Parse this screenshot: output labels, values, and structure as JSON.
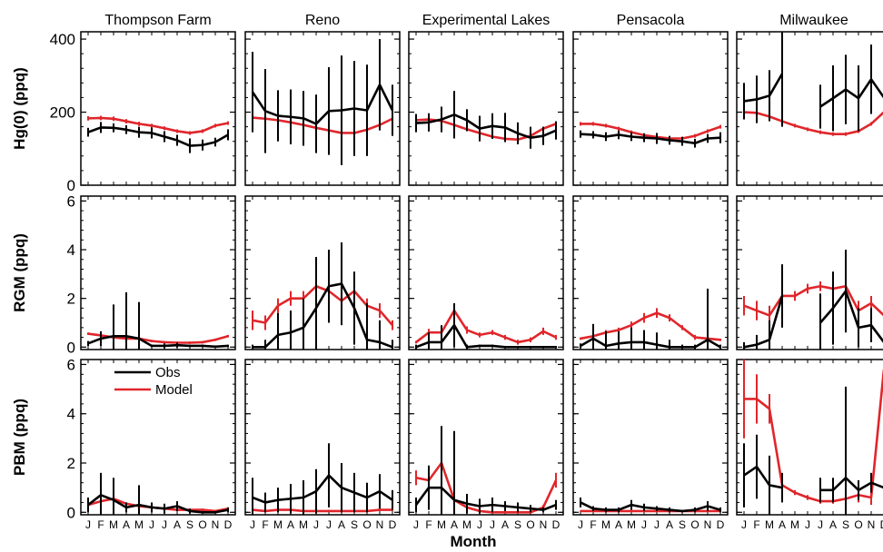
{
  "chart_data": {
    "type": "line",
    "xlabel": "Month",
    "month_labels": [
      "J",
      "F",
      "M",
      "A",
      "M",
      "J",
      "J",
      "A",
      "S",
      "O",
      "N",
      "D"
    ],
    "legend": {
      "placement": "upper-left of bottom-left panel",
      "entries": [
        {
          "name": "Obs",
          "color": "#000000"
        },
        {
          "name": "Model",
          "color": "#e0262b"
        }
      ]
    },
    "colors": {
      "obs": "#000000",
      "model": "#e0262b"
    },
    "sites": [
      "Thompson Farm",
      "Reno",
      "Experimental Lakes",
      "Pensacola",
      "Milwaukee"
    ],
    "rows": [
      {
        "ylabel": "Hg(0) (ppq)",
        "ylim": [
          0,
          420
        ],
        "ticks": [
          0,
          200,
          400
        ],
        "panels": [
          {
            "site": "Thompson Farm",
            "obs": [
              145,
              158,
              157,
              152,
              145,
              143,
              133,
              123,
              108,
              110,
              118,
              138
            ],
            "obs_err": [
              12,
              15,
              12,
              12,
              15,
              15,
              15,
              15,
              20,
              15,
              12,
              15
            ],
            "model": [
              183,
              184,
              182,
              175,
              168,
              163,
              156,
              148,
              143,
              148,
              163,
              170
            ],
            "model_err": [
              6,
              6,
              6,
              6,
              6,
              5,
              5,
              5,
              5,
              5,
              5,
              5
            ]
          },
          {
            "site": "Reno",
            "obs": [
              255,
              203,
              190,
              187,
              183,
              168,
              203,
              205,
              210,
              205,
              275,
              205
            ],
            "obs_err": [
              110,
              115,
              70,
              75,
              75,
              80,
              120,
              150,
              130,
              125,
              125,
              70
            ],
            "model": [
              185,
              182,
              178,
              172,
              165,
              157,
              150,
              143,
              143,
              152,
              165,
              182
            ],
            "model_err": [
              5,
              5,
              5,
              5,
              5,
              5,
              5,
              5,
              5,
              5,
              5,
              5
            ]
          },
          {
            "site": "Experimental Lakes",
            "obs": [
              170,
              172,
              180,
              193,
              178,
              155,
              162,
              158,
              142,
              130,
              135,
              150
            ],
            "obs_err": [
              25,
              25,
              35,
              65,
              30,
              35,
              35,
              40,
              30,
              30,
              25,
              25
            ],
            "model": [
              178,
              180,
              176,
              165,
              153,
              143,
              133,
              127,
              125,
              135,
              155,
              168
            ],
            "model_err": [
              5,
              5,
              5,
              5,
              5,
              5,
              5,
              5,
              5,
              5,
              5,
              5
            ]
          },
          {
            "site": "Pensacola",
            "obs": [
              140,
              138,
              133,
              138,
              133,
              130,
              128,
              123,
              120,
              115,
              128,
              130
            ],
            "obs_err": [
              10,
              10,
              12,
              12,
              12,
              12,
              15,
              12,
              12,
              12,
              12,
              15
            ],
            "model": [
              168,
              168,
              163,
              155,
              145,
              137,
              132,
              128,
              128,
              135,
              148,
              160
            ],
            "model_err": [
              5,
              5,
              5,
              5,
              5,
              5,
              5,
              5,
              5,
              5,
              5,
              5
            ]
          },
          {
            "site": "Milwaukee",
            "obs": [
              230,
              235,
              245,
              305,
              null,
              null,
              215,
              238,
              262,
              238,
              290,
              240
            ],
            "obs_err": [
              50,
              65,
              70,
              145,
              null,
              null,
              60,
              90,
              95,
              90,
              95,
              70
            ],
            "model": [
              200,
              198,
              188,
              175,
              163,
              153,
              145,
              140,
              140,
              148,
              168,
              200
            ],
            "model_err": [
              8,
              6,
              5,
              5,
              5,
              5,
              5,
              5,
              5,
              5,
              5,
              5
            ]
          }
        ]
      },
      {
        "ylabel": "RGM (ppq)",
        "ylim": [
          -0.1,
          6.2
        ],
        "ticks": [
          0,
          2,
          4,
          6
        ],
        "panels": [
          {
            "site": "Thompson Farm",
            "obs": [
              0.15,
              0.35,
              0.45,
              0.45,
              0.35,
              0.05,
              0.05,
              0.08,
              0.05,
              0.05,
              0.02,
              0.05
            ],
            "obs_err": [
              0.1,
              0.3,
              1.3,
              1.8,
              1.5,
              0.05,
              0.1,
              0.1,
              0.05,
              0.05,
              0.05,
              0.05
            ],
            "model": [
              0.55,
              0.48,
              0.4,
              0.35,
              0.35,
              0.25,
              0.2,
              0.18,
              0.18,
              0.2,
              0.3,
              0.45
            ],
            "model_err": [
              0.05,
              0.05,
              0.05,
              0.05,
              0.05,
              0.05,
              0.05,
              0.05,
              0.05,
              0.05,
              0.05,
              0.05
            ]
          },
          {
            "site": "Reno",
            "obs": [
              0.0,
              0.0,
              0.5,
              0.6,
              0.8,
              1.6,
              2.5,
              2.6,
              1.6,
              0.3,
              0.2,
              0.0
            ],
            "obs_err": [
              0.1,
              0.3,
              0.9,
              0.9,
              1.2,
              2.1,
              1.5,
              1.7,
              1.5,
              1.5,
              0.9,
              0.3
            ],
            "model": [
              1.1,
              1.0,
              1.7,
              2.0,
              2.0,
              2.5,
              2.3,
              1.9,
              2.3,
              1.7,
              1.5,
              0.9
            ],
            "model_err": [
              0.4,
              0.3,
              0.3,
              0.3,
              0.3,
              0.4,
              0.3,
              0.3,
              0.3,
              0.3,
              0.3,
              0.2
            ]
          },
          {
            "site": "Experimental Lakes",
            "obs": [
              0.0,
              0.2,
              0.2,
              0.9,
              0.0,
              0.05,
              0.05,
              0.0,
              0.0,
              0.0,
              0.0,
              0.0
            ],
            "obs_err": [
              0.1,
              0.4,
              0.7,
              0.9,
              0.1,
              0.05,
              0.05,
              0.05,
              0.05,
              0.05,
              0.05,
              0.05
            ],
            "model": [
              0.2,
              0.6,
              0.6,
              1.5,
              0.7,
              0.5,
              0.6,
              0.4,
              0.2,
              0.3,
              0.65,
              0.4
            ],
            "model_err": [
              0.05,
              0.15,
              0.15,
              0.3,
              0.15,
              0.1,
              0.1,
              0.1,
              0.1,
              0.1,
              0.15,
              0.1
            ]
          },
          {
            "site": "Pensacola",
            "obs": [
              0.05,
              0.35,
              0.05,
              0.15,
              0.2,
              0.2,
              0.1,
              0.0,
              0.0,
              0.0,
              0.3,
              0.0
            ],
            "obs_err": [
              0.1,
              0.6,
              0.6,
              0.5,
              0.6,
              0.5,
              0.5,
              0.3,
              0.1,
              0.1,
              2.1,
              0.1
            ],
            "model": [
              0.35,
              0.45,
              0.6,
              0.7,
              0.9,
              1.2,
              1.4,
              1.2,
              0.8,
              0.4,
              0.35,
              0.3
            ],
            "model_err": [
              0.05,
              0.1,
              0.1,
              0.1,
              0.15,
              0.2,
              0.2,
              0.15,
              0.1,
              0.1,
              0.05,
              0.05
            ]
          },
          {
            "site": "Milwaukee",
            "obs": [
              0.0,
              0.1,
              0.3,
              2.1,
              null,
              null,
              1.0,
              1.6,
              2.3,
              0.8,
              0.9,
              0.2
            ],
            "obs_err": [
              0.2,
              0.4,
              0.8,
              1.3,
              null,
              null,
              1.2,
              1.5,
              1.7,
              0.8,
              0.7,
              0.2
            ],
            "model": [
              1.7,
              1.5,
              1.3,
              2.1,
              2.1,
              2.4,
              2.5,
              2.4,
              2.5,
              1.5,
              1.8,
              1.3
            ],
            "model_err": [
              0.4,
              0.4,
              0.4,
              0.2,
              0.2,
              0.2,
              0.2,
              0.2,
              0.5,
              0.4,
              0.3,
              0.3
            ]
          }
        ]
      },
      {
        "ylabel": "PBM (ppq)",
        "ylim": [
          -0.1,
          6.2
        ],
        "ticks": [
          0,
          2,
          4,
          6
        ],
        "panels": [
          {
            "site": "Thompson Farm",
            "obs": [
              0.3,
              0.7,
              0.5,
              0.2,
              0.3,
              0.2,
              0.15,
              0.25,
              0.05,
              0.0,
              0.0,
              0.1
            ],
            "obs_err": [
              0.3,
              0.9,
              0.9,
              0.2,
              0.8,
              0.2,
              0.2,
              0.2,
              0.1,
              0.05,
              0.05,
              0.1
            ],
            "model": [
              0.3,
              0.45,
              0.55,
              0.35,
              0.25,
              0.2,
              0.15,
              0.1,
              0.1,
              0.1,
              0.05,
              0.15
            ],
            "model_err": [
              0.05,
              0.05,
              0.05,
              0.05,
              0.05,
              0.05,
              0.05,
              0.05,
              0.05,
              0.05,
              0.05,
              0.05
            ]
          },
          {
            "site": "Reno",
            "obs": [
              0.6,
              0.4,
              0.5,
              0.55,
              0.6,
              0.85,
              1.5,
              1.0,
              0.8,
              0.6,
              0.85,
              0.5
            ],
            "obs_err": [
              0.8,
              0.4,
              0.5,
              0.6,
              0.7,
              0.9,
              1.3,
              1.0,
              0.8,
              0.6,
              0.7,
              0.4
            ],
            "model": [
              0.1,
              0.05,
              0.1,
              0.1,
              0.05,
              0.05,
              0.05,
              0.05,
              0.05,
              0.05,
              0.1,
              0.1
            ],
            "model_err": [
              0.05,
              0.05,
              0.05,
              0.05,
              0.05,
              0.05,
              0.05,
              0.05,
              0.05,
              0.05,
              0.05,
              0.05
            ]
          },
          {
            "site": "Experimental Lakes",
            "obs": [
              0.3,
              1.0,
              1.0,
              0.5,
              0.35,
              0.25,
              0.3,
              0.25,
              0.2,
              0.15,
              0.1,
              0.3
            ],
            "obs_err": [
              0.3,
              0.9,
              2.5,
              2.8,
              0.4,
              0.3,
              0.3,
              0.2,
              0.2,
              0.15,
              0.1,
              0.2
            ],
            "model": [
              1.4,
              1.3,
              2.0,
              0.5,
              0.2,
              0.05,
              0.0,
              0.0,
              0.0,
              0.0,
              0.2,
              1.3
            ],
            "model_err": [
              0.3,
              0.3,
              0.5,
              0.2,
              0.1,
              0.05,
              0.05,
              0.05,
              0.05,
              0.05,
              0.1,
              0.3
            ]
          },
          {
            "site": "Pensacola",
            "obs": [
              0.4,
              0.15,
              0.1,
              0.1,
              0.3,
              0.2,
              0.15,
              0.1,
              0.05,
              0.1,
              0.25,
              0.1
            ],
            "obs_err": [
              0.2,
              0.1,
              0.1,
              0.1,
              0.2,
              0.15,
              0.1,
              0.1,
              0.05,
              0.1,
              0.2,
              0.1
            ],
            "model": [
              0.05,
              0.05,
              0.05,
              0.05,
              0.05,
              0.05,
              0.05,
              0.05,
              0.05,
              0.05,
              0.05,
              0.05
            ],
            "model_err": [
              0.02,
              0.02,
              0.02,
              0.02,
              0.02,
              0.02,
              0.02,
              0.02,
              0.02,
              0.02,
              0.02,
              0.02
            ]
          },
          {
            "site": "Milwaukee",
            "obs": [
              1.5,
              1.85,
              1.1,
              1.0,
              null,
              null,
              0.9,
              0.9,
              1.4,
              0.9,
              1.2,
              1.0
            ],
            "obs_err": [
              1.3,
              1.3,
              1.2,
              0.6,
              null,
              null,
              0.5,
              0.5,
              3.7,
              0.4,
              0.4,
              0.3
            ],
            "model": [
              4.6,
              4.6,
              4.2,
              1.1,
              0.8,
              0.6,
              0.45,
              0.45,
              0.55,
              0.7,
              0.6,
              5.8
            ],
            "model_err": [
              1.6,
              1.0,
              0.6,
              0.2,
              0.1,
              0.1,
              0.1,
              0.1,
              0.2,
              0.3,
              0.3,
              0.4
            ]
          }
        ]
      }
    ]
  }
}
